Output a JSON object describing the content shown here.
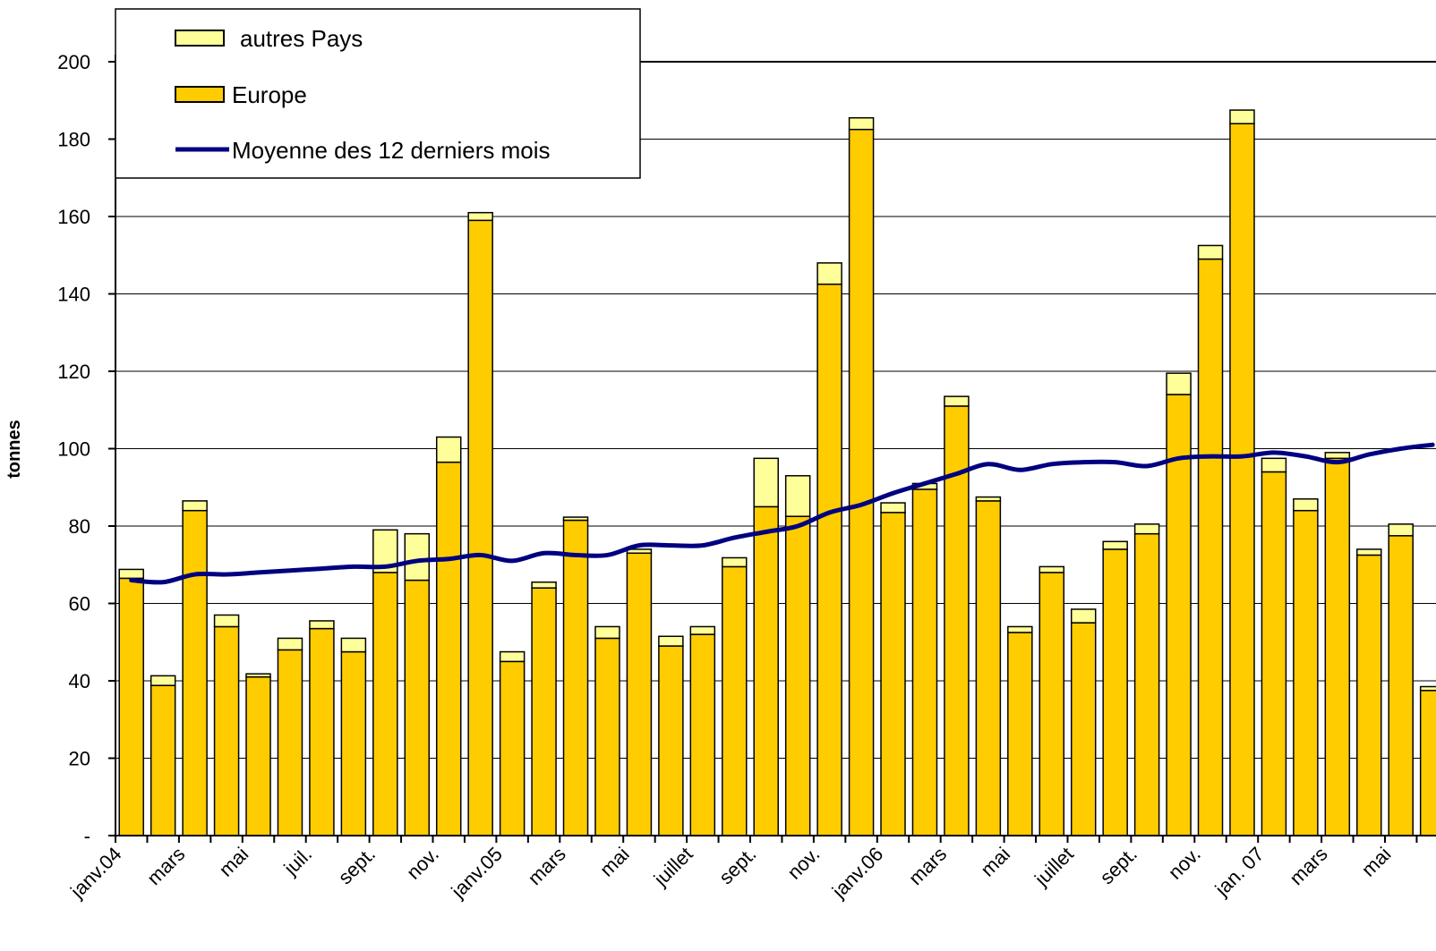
{
  "chart_data": {
    "type": "bar",
    "stacked": true,
    "ylabel": "tonnes",
    "xlabel": "",
    "ylim": [
      0,
      200
    ],
    "yticks": [
      0,
      20,
      40,
      60,
      80,
      100,
      120,
      140,
      160,
      180,
      200
    ],
    "ytick_labels": [
      "-",
      "20",
      "40",
      "60",
      "80",
      "100",
      "120",
      "140",
      "160",
      "180",
      "200"
    ],
    "grid": true,
    "legend_position": "top-left",
    "colors": {
      "europe": "#FFCC00",
      "autres": "#FFFF99",
      "line": "#000080",
      "grid": "#000000",
      "bar_edge": "#000000"
    },
    "categories": [
      "janv.04",
      "",
      "mars",
      "",
      "mai",
      "",
      "juil.",
      "",
      "sept.",
      "",
      "nov.",
      "",
      "janv.05",
      "",
      "mars",
      "",
      "mai",
      "",
      "juillet",
      "",
      "sept.",
      "",
      "nov.",
      "",
      "janv.06",
      "",
      "mars",
      "",
      "mai",
      "",
      "juillet",
      "",
      "sept.",
      "",
      "nov.",
      "",
      "jan. 07",
      "",
      "mars",
      "",
      "mai",
      ""
    ],
    "series": [
      {
        "name": "Europe",
        "values": [
          66.5,
          38.8,
          84,
          54,
          41,
          48,
          53.5,
          47.5,
          68,
          66,
          96.5,
          159,
          45,
          64,
          81.5,
          51,
          73,
          49,
          52,
          69.5,
          85,
          82.5,
          142.5,
          182.5,
          83.5,
          89.5,
          111,
          86.5,
          52.5,
          68,
          55,
          74,
          78,
          114,
          149,
          184,
          94,
          84,
          97.5,
          72.5,
          77.5,
          37.5
        ]
      },
      {
        "name": "autres Pays",
        "values": [
          2.3,
          2.5,
          2.5,
          3,
          0.8,
          3,
          2,
          3.5,
          11,
          12,
          6.5,
          2,
          2.5,
          1.5,
          0.8,
          3,
          1,
          2.5,
          2,
          2.3,
          12.5,
          10.5,
          5.5,
          3,
          2.5,
          1.5,
          2.5,
          1,
          1.5,
          1.5,
          3.5,
          2,
          2.5,
          5.5,
          3.5,
          3.5,
          3.5,
          3,
          1.5,
          1.5,
          3,
          1
        ]
      },
      {
        "name": "Moyenne des 12 derniers mois",
        "type": "line",
        "values": [
          66,
          65.5,
          67.5,
          67.5,
          68,
          68.5,
          69,
          69.5,
          69.5,
          71,
          71.5,
          72.5,
          71,
          73,
          72.5,
          72.5,
          75,
          75,
          75,
          77,
          78.5,
          80,
          83.5,
          85.5,
          88.5,
          91,
          93.5,
          96,
          94.5,
          96,
          96.5,
          96.5,
          95.5,
          97.5,
          98,
          98,
          99,
          98,
          96.5,
          98.5,
          100,
          101
        ]
      }
    ]
  }
}
